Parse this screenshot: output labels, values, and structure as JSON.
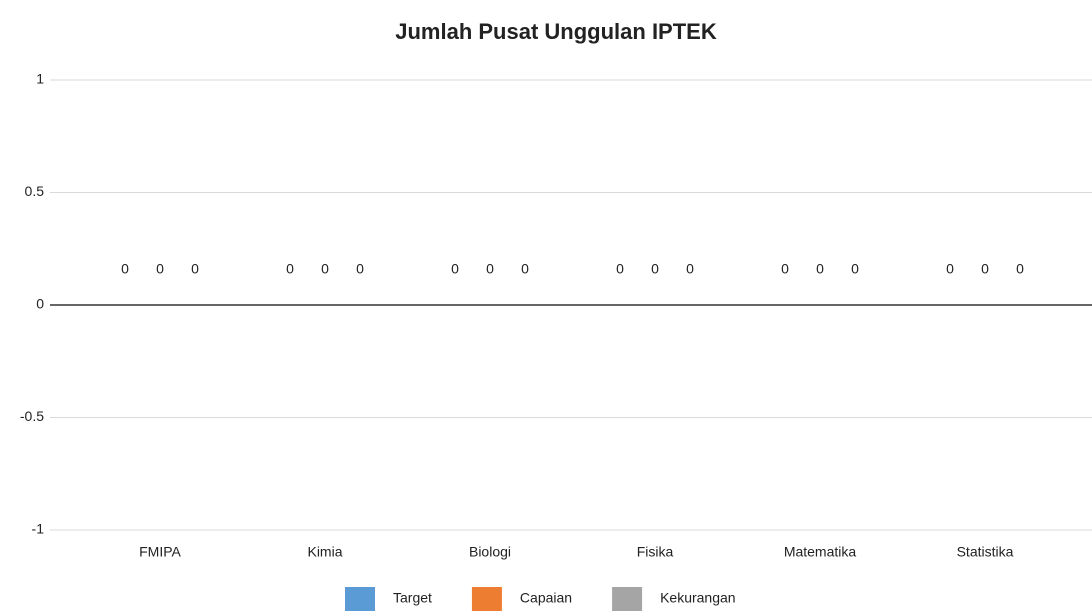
{
  "chart_data": {
    "type": "bar",
    "title": "Jumlah Pusat Unggulan IPTEK",
    "categories": [
      "FMIPA",
      "Kimia",
      "Biologi",
      "Fisika",
      "Matematika",
      "Statistika"
    ],
    "series": [
      {
        "name": "Target",
        "color": "#5b9bd5",
        "values": [
          0,
          0,
          0,
          0,
          0,
          0
        ]
      },
      {
        "name": "Capaian",
        "color": "#ed7d31",
        "values": [
          0,
          0,
          0,
          0,
          0,
          0
        ]
      },
      {
        "name": "Kekurangan",
        "color": "#a5a5a5",
        "values": [
          0,
          0,
          0,
          0,
          0,
          0
        ]
      }
    ],
    "ylim": [
      -1,
      1
    ],
    "yticks": [
      -1,
      -0.5,
      0,
      0.5,
      1
    ],
    "grid": true,
    "legend": "bottom"
  }
}
